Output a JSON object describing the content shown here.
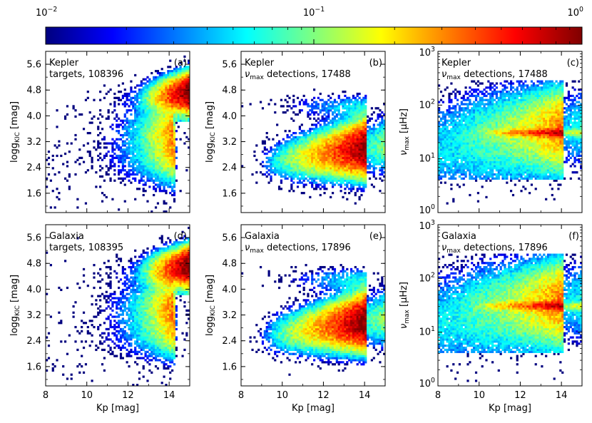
{
  "colorbar": {
    "scale": "log",
    "range": [
      0.01,
      1
    ],
    "tick_labels": [
      "10^-2",
      "10^-1",
      "10^0"
    ],
    "colormap": "jet",
    "colors": [
      "#00007f",
      "#0000ff",
      "#007fff",
      "#00ffff",
      "#7fff7f",
      "#ffff00",
      "#ff7f00",
      "#ff0000",
      "#7f0000"
    ]
  },
  "chart_data": [
    {
      "id": "a",
      "type": "heatmap",
      "panel_label": "(a)",
      "title_lines": [
        "Kepler",
        "targets, 108396"
      ],
      "xlabel": "Kp [mag]",
      "ylabel": "logg_KIC [mag]",
      "xlim": [
        8,
        15
      ],
      "ylim": [
        1.0,
        6.0
      ],
      "xticks": [
        8,
        10,
        12,
        14
      ],
      "yticks": [
        1.6,
        2.4,
        3.2,
        4.0,
        4.8,
        5.6
      ],
      "xtick_labels": [
        "8",
        "10",
        "12",
        "14"
      ],
      "ytick_labels": [
        "1.6",
        "2.4",
        "3.2",
        "4.0",
        "4.8",
        "5.6"
      ],
      "count": 108396,
      "description": "all Kepler targets: dense dwarf sequence near logg 4.0-4.8 at faint Kp, red giants logg 2.4-3.2"
    },
    {
      "id": "b",
      "type": "heatmap",
      "panel_label": "(b)",
      "title_lines": [
        "Kepler",
        "numax detections, 17488"
      ],
      "xlabel": "Kp [mag]",
      "ylabel": "logg_KIC [mag]",
      "xlim": [
        8,
        15
      ],
      "ylim": [
        1.0,
        6.0
      ],
      "xticks": [
        8,
        10,
        12,
        14
      ],
      "yticks": [
        1.6,
        2.4,
        3.2,
        4.0,
        4.8,
        5.6
      ],
      "xtick_labels": [
        "8",
        "10",
        "12",
        "14"
      ],
      "ytick_labels": [
        "1.6",
        "2.4",
        "3.2",
        "4.0",
        "4.8",
        "5.6"
      ],
      "count": 17488,
      "description": "numax detections concentrated on red giants, density peaks near Kp 13-14, logg 2.8-3.4"
    },
    {
      "id": "c",
      "type": "heatmap",
      "panel_label": "(c)",
      "title_lines": [
        "Kepler",
        "numax detections, 17488"
      ],
      "xlabel": "Kp [mag]",
      "ylabel": "numax [uHz]",
      "xlim": [
        8,
        15
      ],
      "ylim": [
        1,
        1000
      ],
      "yscale": "log",
      "xticks": [
        8,
        10,
        12,
        14
      ],
      "yticks": [
        1,
        10,
        100,
        1000
      ],
      "xtick_labels": [
        "8",
        "10",
        "12",
        "14"
      ],
      "ytick_labels": [
        "10^0",
        "10^1",
        "10^2",
        "10^3"
      ],
      "count": 17488,
      "description": "numax between about 5 and 280 uHz, red clump ridge near 30-35 uHz for Kp 10-14"
    },
    {
      "id": "d",
      "type": "heatmap",
      "panel_label": "(d)",
      "title_lines": [
        "Galaxia",
        "targets, 108395"
      ],
      "xlabel": "Kp [mag]",
      "ylabel": "logg_KIC [mag]",
      "xlim": [
        8,
        15
      ],
      "ylim": [
        1.0,
        6.0
      ],
      "xticks": [
        8,
        10,
        12,
        14
      ],
      "yticks": [
        1.6,
        2.4,
        3.2,
        4.0,
        4.8,
        5.6
      ],
      "xtick_labels": [
        "8",
        "10",
        "12",
        "14"
      ],
      "ytick_labels": [
        "1.6",
        "2.4",
        "3.2",
        "4.0",
        "4.8",
        "5.6"
      ],
      "count": 108395,
      "description": "synthetic Galaxia targets reproducing the Kepler target distribution"
    },
    {
      "id": "e",
      "type": "heatmap",
      "panel_label": "(e)",
      "title_lines": [
        "Galaxia",
        "numax detections, 17896"
      ],
      "xlabel": "Kp [mag]",
      "ylabel": "logg_KIC [mag]",
      "xlim": [
        8,
        15
      ],
      "ylim": [
        1.0,
        6.0
      ],
      "xticks": [
        8,
        10,
        12,
        14
      ],
      "yticks": [
        1.6,
        2.4,
        3.2,
        4.0,
        4.8,
        5.6
      ],
      "xtick_labels": [
        "8",
        "10",
        "12",
        "14"
      ],
      "ytick_labels": [
        "1.6",
        "2.4",
        "3.2",
        "4.0",
        "4.8",
        "5.6"
      ],
      "count": 17896,
      "description": "synthetic numax detections, giants only, peak near Kp 13-14, logg 2.8-3.4"
    },
    {
      "id": "f",
      "type": "heatmap",
      "panel_label": "(f)",
      "title_lines": [
        "Galaxia",
        "numax detections, 17896"
      ],
      "xlabel": "Kp [mag]",
      "ylabel": "numax [uHz]",
      "xlim": [
        8,
        15
      ],
      "ylim": [
        1,
        1000
      ],
      "yscale": "log",
      "xticks": [
        8,
        10,
        12,
        14
      ],
      "yticks": [
        1,
        10,
        100,
        1000
      ],
      "xtick_labels": [
        "8",
        "10",
        "12",
        "14"
      ],
      "ytick_labels": [
        "10^0",
        "10^1",
        "10^2",
        "10^3"
      ],
      "count": 17896,
      "description": "synthetic numax between about 4 and 280 uHz with red clump ridge near 30 uHz"
    }
  ]
}
